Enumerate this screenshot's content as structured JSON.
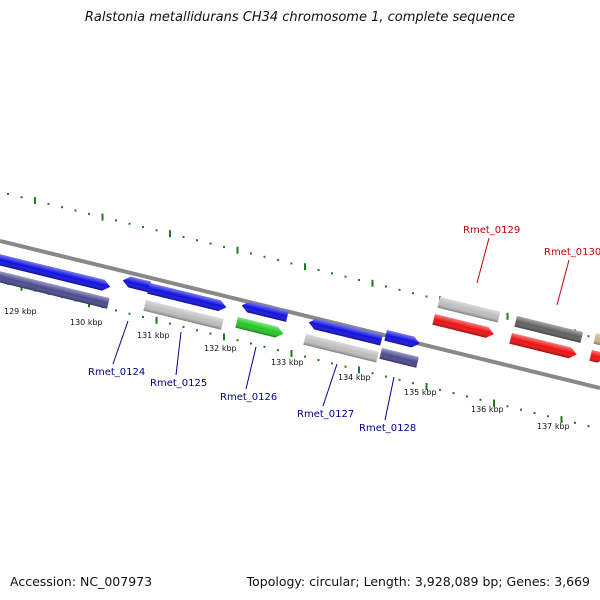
{
  "title": "Ralstonia metallidurans CH34 chromosome 1, complete sequence",
  "accession_label": "Accession: NC_007973",
  "summary_label": "Topology: circular; Length: 3,928,089 bp; Genes: 3,669",
  "colors": {
    "backbone": "#888888",
    "tick_green": "#1e7a1e",
    "label_blue": "#00008b",
    "label_red": "#cc0000"
  },
  "scale_labels": [
    "129 kbp",
    "130 kbp",
    "131 kbp",
    "132 kbp",
    "133 kbp",
    "134 kbp",
    "135 kbp",
    "136 kbp",
    "137 kbp"
  ],
  "gene_labels": [
    {
      "text": "Rmet_0124",
      "color": "#00008b"
    },
    {
      "text": "Rmet_0125",
      "color": "#00008b"
    },
    {
      "text": "Rmet_0126",
      "color": "#00008b"
    },
    {
      "text": "Rmet_0127",
      "color": "#00008b"
    },
    {
      "text": "Rmet_0128",
      "color": "#00008b"
    },
    {
      "text": "Rmet_0129",
      "color": "#cc0000"
    },
    {
      "text": "Rmet_0130",
      "color": "#cc0000"
    }
  ],
  "features": [
    {
      "color": "#1010e0",
      "direction": "forward"
    },
    {
      "color": "#4a4a8e",
      "direction": "none"
    },
    {
      "color": "#1010e0",
      "direction": "reverse"
    },
    {
      "color": "#1010e0",
      "direction": "forward"
    },
    {
      "color": "#bdbdbd",
      "direction": "none"
    },
    {
      "color": "#1010e0",
      "direction": "reverse"
    },
    {
      "color": "#22c822",
      "direction": "forward"
    },
    {
      "color": "#1010e0",
      "direction": "reverse"
    },
    {
      "color": "#bdbdbd",
      "direction": "none"
    },
    {
      "color": "#1010e0",
      "direction": "forward"
    },
    {
      "color": "#4a4a8e",
      "direction": "none"
    },
    {
      "color": "#bdbdbd",
      "direction": "none"
    },
    {
      "color": "#ee1010",
      "direction": "forward"
    },
    {
      "color": "#606060",
      "direction": "none"
    },
    {
      "color": "#ee1010",
      "direction": "forward"
    },
    {
      "color": "#ee1010",
      "direction": "forward"
    },
    {
      "color": "#c8b48a",
      "direction": "none"
    }
  ]
}
